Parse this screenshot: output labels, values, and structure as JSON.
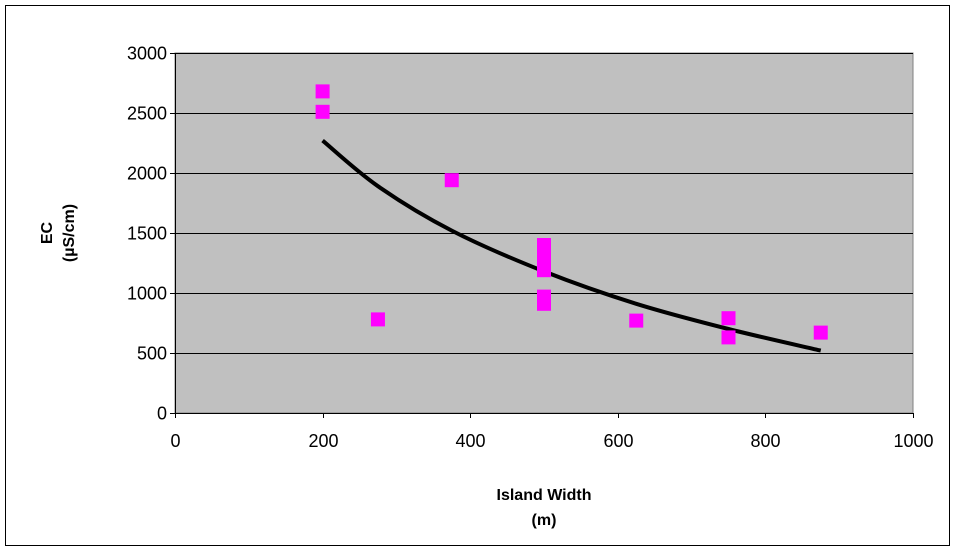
{
  "chart_data": {
    "type": "scatter",
    "xlabel_line1": "Island Width",
    "xlabel_line2": "(m)",
    "ylabel_line1": "EC",
    "ylabel_line2": "(µS/cm)",
    "xlim": [
      0,
      1000
    ],
    "ylim": [
      0,
      3000
    ],
    "x_ticks": [
      0,
      200,
      400,
      600,
      800,
      1000
    ],
    "y_ticks": [
      0,
      500,
      1000,
      1500,
      2000,
      2500,
      3000
    ],
    "grid": "horizontal",
    "plot_background": "#c0c0c0",
    "series": [
      {
        "marker": "square",
        "color": "#ff00ff",
        "points": [
          {
            "x": 200,
            "y": 2680
          },
          {
            "x": 200,
            "y": 2510
          },
          {
            "x": 275,
            "y": 780
          },
          {
            "x": 375,
            "y": 1940
          },
          {
            "x": 500,
            "y": 1400
          },
          {
            "x": 500,
            "y": 1330
          },
          {
            "x": 500,
            "y": 1260
          },
          {
            "x": 500,
            "y": 1190
          },
          {
            "x": 500,
            "y": 970
          },
          {
            "x": 500,
            "y": 910
          },
          {
            "x": 625,
            "y": 770
          },
          {
            "x": 750,
            "y": 790
          },
          {
            "x": 750,
            "y": 630
          },
          {
            "x": 875,
            "y": 670
          }
        ]
      }
    ],
    "trendline": {
      "color": "#000000",
      "x_range": [
        200,
        875
      ],
      "points": [
        {
          "x": 200,
          "y": 2270
        },
        {
          "x": 275,
          "y": 1890
        },
        {
          "x": 375,
          "y": 1520
        },
        {
          "x": 500,
          "y": 1180
        },
        {
          "x": 625,
          "y": 910
        },
        {
          "x": 750,
          "y": 700
        },
        {
          "x": 875,
          "y": 520
        }
      ]
    }
  }
}
